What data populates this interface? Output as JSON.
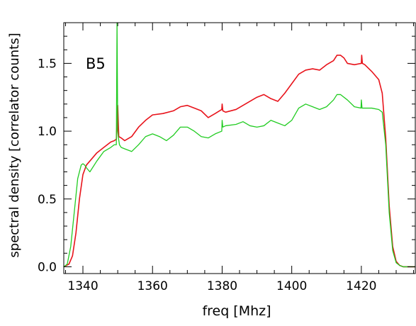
{
  "chart_data": {
    "type": "line",
    "title": "",
    "panel_label": "B5",
    "xlabel": "freq [Mhz]",
    "ylabel": "spectral density [correlator counts]",
    "xlim": [
      1334.5,
      1435.5
    ],
    "ylim": [
      -0.05,
      1.8
    ],
    "xticks": [
      1340,
      1360,
      1380,
      1400,
      1420
    ],
    "xtick_labels": [
      "1340",
      "1360",
      "1380",
      "1400",
      "1420"
    ],
    "yticks": [
      0.0,
      0.5,
      1.0,
      1.5
    ],
    "ytick_labels": [
      "0.0",
      "0.5",
      "1.0",
      "1.5"
    ],
    "grid": false,
    "series": [
      {
        "color": "#e8131b",
        "x": [
          1334.5,
          1336,
          1337,
          1338,
          1339,
          1340,
          1341,
          1342,
          1344,
          1346,
          1348,
          1349,
          1349.6,
          1350,
          1350.3,
          1351,
          1352,
          1354,
          1356,
          1358,
          1360,
          1363,
          1366,
          1368,
          1370,
          1372,
          1374,
          1376,
          1378,
          1379.9,
          1380,
          1380.2,
          1381,
          1384,
          1386,
          1388,
          1390,
          1392,
          1394,
          1396,
          1398,
          1400,
          1402,
          1404,
          1406,
          1408,
          1410,
          1412,
          1413,
          1414,
          1415,
          1416,
          1418,
          1420,
          1420.1,
          1420.3,
          1421,
          1423,
          1425,
          1426,
          1427,
          1428,
          1429,
          1430,
          1431,
          1432,
          1433,
          1434,
          1435.5
        ],
        "y": [
          0.0,
          0.02,
          0.08,
          0.25,
          0.5,
          0.68,
          0.75,
          0.78,
          0.84,
          0.88,
          0.92,
          0.93,
          0.94,
          1.19,
          0.96,
          0.95,
          0.93,
          0.96,
          1.03,
          1.08,
          1.12,
          1.13,
          1.15,
          1.18,
          1.19,
          1.17,
          1.15,
          1.1,
          1.13,
          1.16,
          1.2,
          1.15,
          1.14,
          1.16,
          1.19,
          1.22,
          1.25,
          1.27,
          1.24,
          1.22,
          1.28,
          1.35,
          1.42,
          1.45,
          1.46,
          1.45,
          1.49,
          1.52,
          1.56,
          1.56,
          1.54,
          1.5,
          1.49,
          1.5,
          1.56,
          1.5,
          1.49,
          1.44,
          1.38,
          1.28,
          0.95,
          0.45,
          0.15,
          0.04,
          0.01,
          0.0,
          0.0,
          0.0,
          0.0
        ]
      },
      {
        "color": "#22cc22",
        "x": [
          1334.5,
          1335.5,
          1336.5,
          1337.5,
          1338.5,
          1339.5,
          1340,
          1340.5,
          1341,
          1342,
          1344,
          1346,
          1348,
          1349,
          1349.6,
          1349.8,
          1350,
          1350.2,
          1350.5,
          1351,
          1352,
          1354,
          1356,
          1358,
          1360,
          1362,
          1364,
          1366,
          1368,
          1370,
          1372,
          1374,
          1376,
          1378,
          1379.9,
          1380,
          1380.2,
          1381,
          1384,
          1386,
          1388,
          1390,
          1392,
          1394,
          1396,
          1398,
          1400,
          1402,
          1404,
          1406,
          1408,
          1410,
          1412,
          1413,
          1414,
          1416,
          1418,
          1419.9,
          1420,
          1420.2,
          1421,
          1423,
          1425,
          1426,
          1427,
          1428,
          1429,
          1430,
          1431,
          1432,
          1433,
          1435.5
        ],
        "y": [
          0.0,
          0.02,
          0.15,
          0.4,
          0.65,
          0.75,
          0.76,
          0.75,
          0.73,
          0.7,
          0.78,
          0.85,
          0.88,
          0.9,
          0.9,
          1.8,
          1.0,
          0.95,
          0.9,
          0.88,
          0.87,
          0.85,
          0.9,
          0.96,
          0.98,
          0.96,
          0.93,
          0.97,
          1.03,
          1.03,
          1.0,
          0.96,
          0.95,
          0.98,
          1.0,
          1.08,
          1.03,
          1.04,
          1.05,
          1.07,
          1.04,
          1.03,
          1.04,
          1.08,
          1.06,
          1.04,
          1.08,
          1.17,
          1.2,
          1.18,
          1.16,
          1.18,
          1.23,
          1.27,
          1.27,
          1.23,
          1.18,
          1.17,
          1.23,
          1.17,
          1.17,
          1.17,
          1.16,
          1.14,
          0.9,
          0.4,
          0.12,
          0.03,
          0.01,
          0.0,
          0.0,
          0.0
        ]
      }
    ]
  }
}
